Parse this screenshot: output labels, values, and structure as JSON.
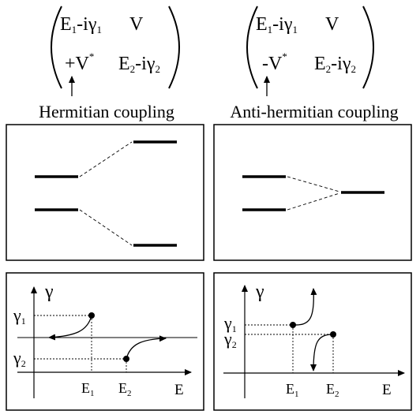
{
  "matrices": {
    "left": {
      "m11": {
        "base": "E",
        "sub": "1",
        "mid": "-iγ",
        "sub2": "1"
      },
      "m12": "V",
      "m21": {
        "prefix": "+",
        "base": "V",
        "sup": "*"
      },
      "m22": {
        "base": "E",
        "sub": "2",
        "mid": "-iγ",
        "sub2": "2"
      },
      "caption": "Hermitian coupling"
    },
    "right": {
      "m11": {
        "base": "E",
        "sub": "1",
        "mid": "-iγ",
        "sub2": "1"
      },
      "m12": "V",
      "m21": {
        "prefix": "-",
        "base": "V",
        "sup": "*"
      },
      "m22": {
        "base": "E",
        "sub": "2",
        "mid": "-iγ",
        "sub2": "2"
      },
      "caption": "Anti-hermitian coupling"
    }
  },
  "plots": {
    "left": {
      "y_axis_label": "γ",
      "x_axis_label": "E",
      "y_ticks": [
        {
          "base": "γ",
          "sub": "1"
        },
        {
          "base": "γ",
          "sub": "2"
        }
      ],
      "x_ticks": [
        {
          "base": "E",
          "sub": "1"
        },
        {
          "base": "E",
          "sub": "2"
        }
      ]
    },
    "right": {
      "y_axis_label": "γ",
      "x_axis_label": "E",
      "y_ticks": [
        {
          "base": "γ",
          "sub": "1"
        },
        {
          "base": "γ",
          "sub": "2"
        }
      ],
      "x_ticks": [
        {
          "base": "E",
          "sub": "1"
        },
        {
          "base": "E",
          "sub": "2"
        }
      ]
    }
  },
  "colors": {
    "ink": "#000000",
    "background": "#ffffff"
  }
}
